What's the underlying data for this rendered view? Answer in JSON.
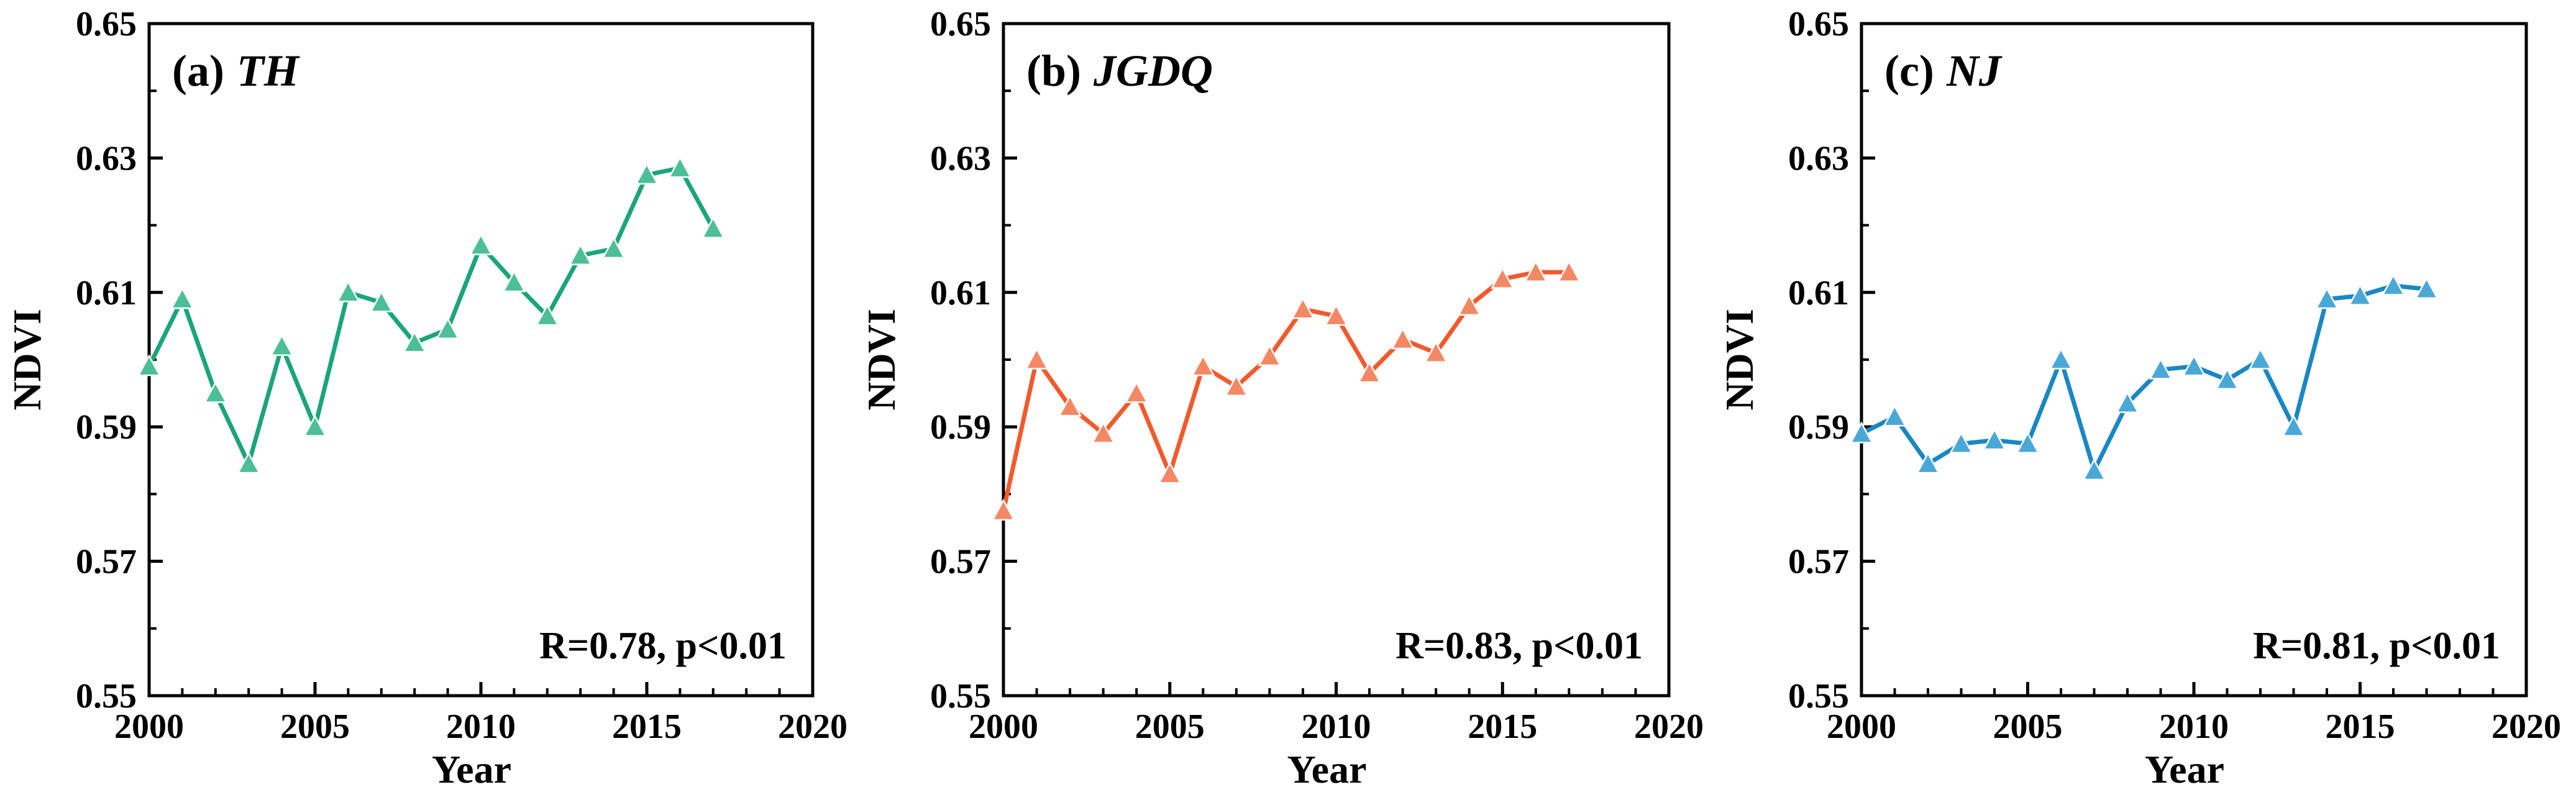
{
  "chart_data": [
    {
      "type": "line",
      "panel_label": "(a)",
      "title": "TH",
      "xlabel": "Year",
      "ylabel": "NDVI",
      "xlim": [
        2000,
        2020
      ],
      "ylim": [
        0.55,
        0.65
      ],
      "xticks": [
        2000,
        2005,
        2010,
        2015,
        2020
      ],
      "xtick_labels": [
        "2000",
        "2005",
        "2010",
        "2015",
        "2020"
      ],
      "yticks": [
        0.55,
        0.57,
        0.59,
        0.61,
        0.63,
        0.65
      ],
      "ytick_labels": [
        "0.55",
        "0.57",
        "0.59",
        "0.61",
        "0.63",
        "0.65"
      ],
      "annotation": "R=0.78, p<0.01",
      "color": "#1aa57a",
      "marker_color": "#4dbf95",
      "x": [
        2000,
        2001,
        2002,
        2003,
        2004,
        2005,
        2006,
        2007,
        2008,
        2009,
        2010,
        2011,
        2012,
        2013,
        2014,
        2015,
        2016,
        2017
      ],
      "values": [
        0.599,
        0.609,
        0.595,
        0.5845,
        0.602,
        0.59,
        0.61,
        0.6085,
        0.6025,
        0.6045,
        0.617,
        0.6115,
        0.6065,
        0.6155,
        0.6165,
        0.6275,
        0.6285,
        0.6195
      ]
    },
    {
      "type": "line",
      "panel_label": "(b)",
      "title": "JGDQ",
      "xlabel": "Year",
      "ylabel": "NDVI",
      "xlim": [
        2000,
        2020
      ],
      "ylim": [
        0.55,
        0.65
      ],
      "xticks": [
        2000,
        2005,
        2010,
        2015,
        2020
      ],
      "xtick_labels": [
        "2000",
        "2005",
        "2010",
        "2015",
        "2020"
      ],
      "yticks": [
        0.55,
        0.57,
        0.59,
        0.61,
        0.63,
        0.65
      ],
      "ytick_labels": [
        "0.55",
        "0.57",
        "0.59",
        "0.61",
        "0.63",
        "0.65"
      ],
      "annotation": "R=0.83, p<0.01",
      "color": "#f25a2c",
      "marker_color": "#f58864",
      "x": [
        2000,
        2001,
        2002,
        2003,
        2004,
        2005,
        2006,
        2007,
        2008,
        2009,
        2010,
        2011,
        2012,
        2013,
        2014,
        2015,
        2016,
        2017
      ],
      "values": [
        0.5775,
        0.6,
        0.593,
        0.589,
        0.595,
        0.583,
        0.599,
        0.596,
        0.6005,
        0.6075,
        0.6065,
        0.598,
        0.603,
        0.601,
        0.608,
        0.612,
        0.613,
        0.613
      ]
    },
    {
      "type": "line",
      "panel_label": "(c)",
      "title": "NJ",
      "xlabel": "Year",
      "ylabel": "NDVI",
      "xlim": [
        2000,
        2020
      ],
      "ylim": [
        0.55,
        0.65
      ],
      "xticks": [
        2000,
        2005,
        2010,
        2015,
        2020
      ],
      "xtick_labels": [
        "2000",
        "2005",
        "2010",
        "2015",
        "2020"
      ],
      "yticks": [
        0.55,
        0.57,
        0.59,
        0.61,
        0.63,
        0.65
      ],
      "ytick_labels": [
        "0.55",
        "0.57",
        "0.59",
        "0.61",
        "0.63",
        "0.65"
      ],
      "annotation": "R=0.81, p<0.01",
      "color": "#1a87c4",
      "marker_color": "#4aa8d8",
      "x": [
        2000,
        2001,
        2002,
        2003,
        2004,
        2005,
        2006,
        2007,
        2008,
        2009,
        2010,
        2011,
        2012,
        2013,
        2014,
        2015,
        2016,
        2017
      ],
      "values": [
        0.589,
        0.5915,
        0.5845,
        0.5875,
        0.588,
        0.5875,
        0.6,
        0.5835,
        0.5935,
        0.5985,
        0.599,
        0.597,
        0.6,
        0.59,
        0.609,
        0.6095,
        0.611,
        0.6105
      ]
    }
  ]
}
